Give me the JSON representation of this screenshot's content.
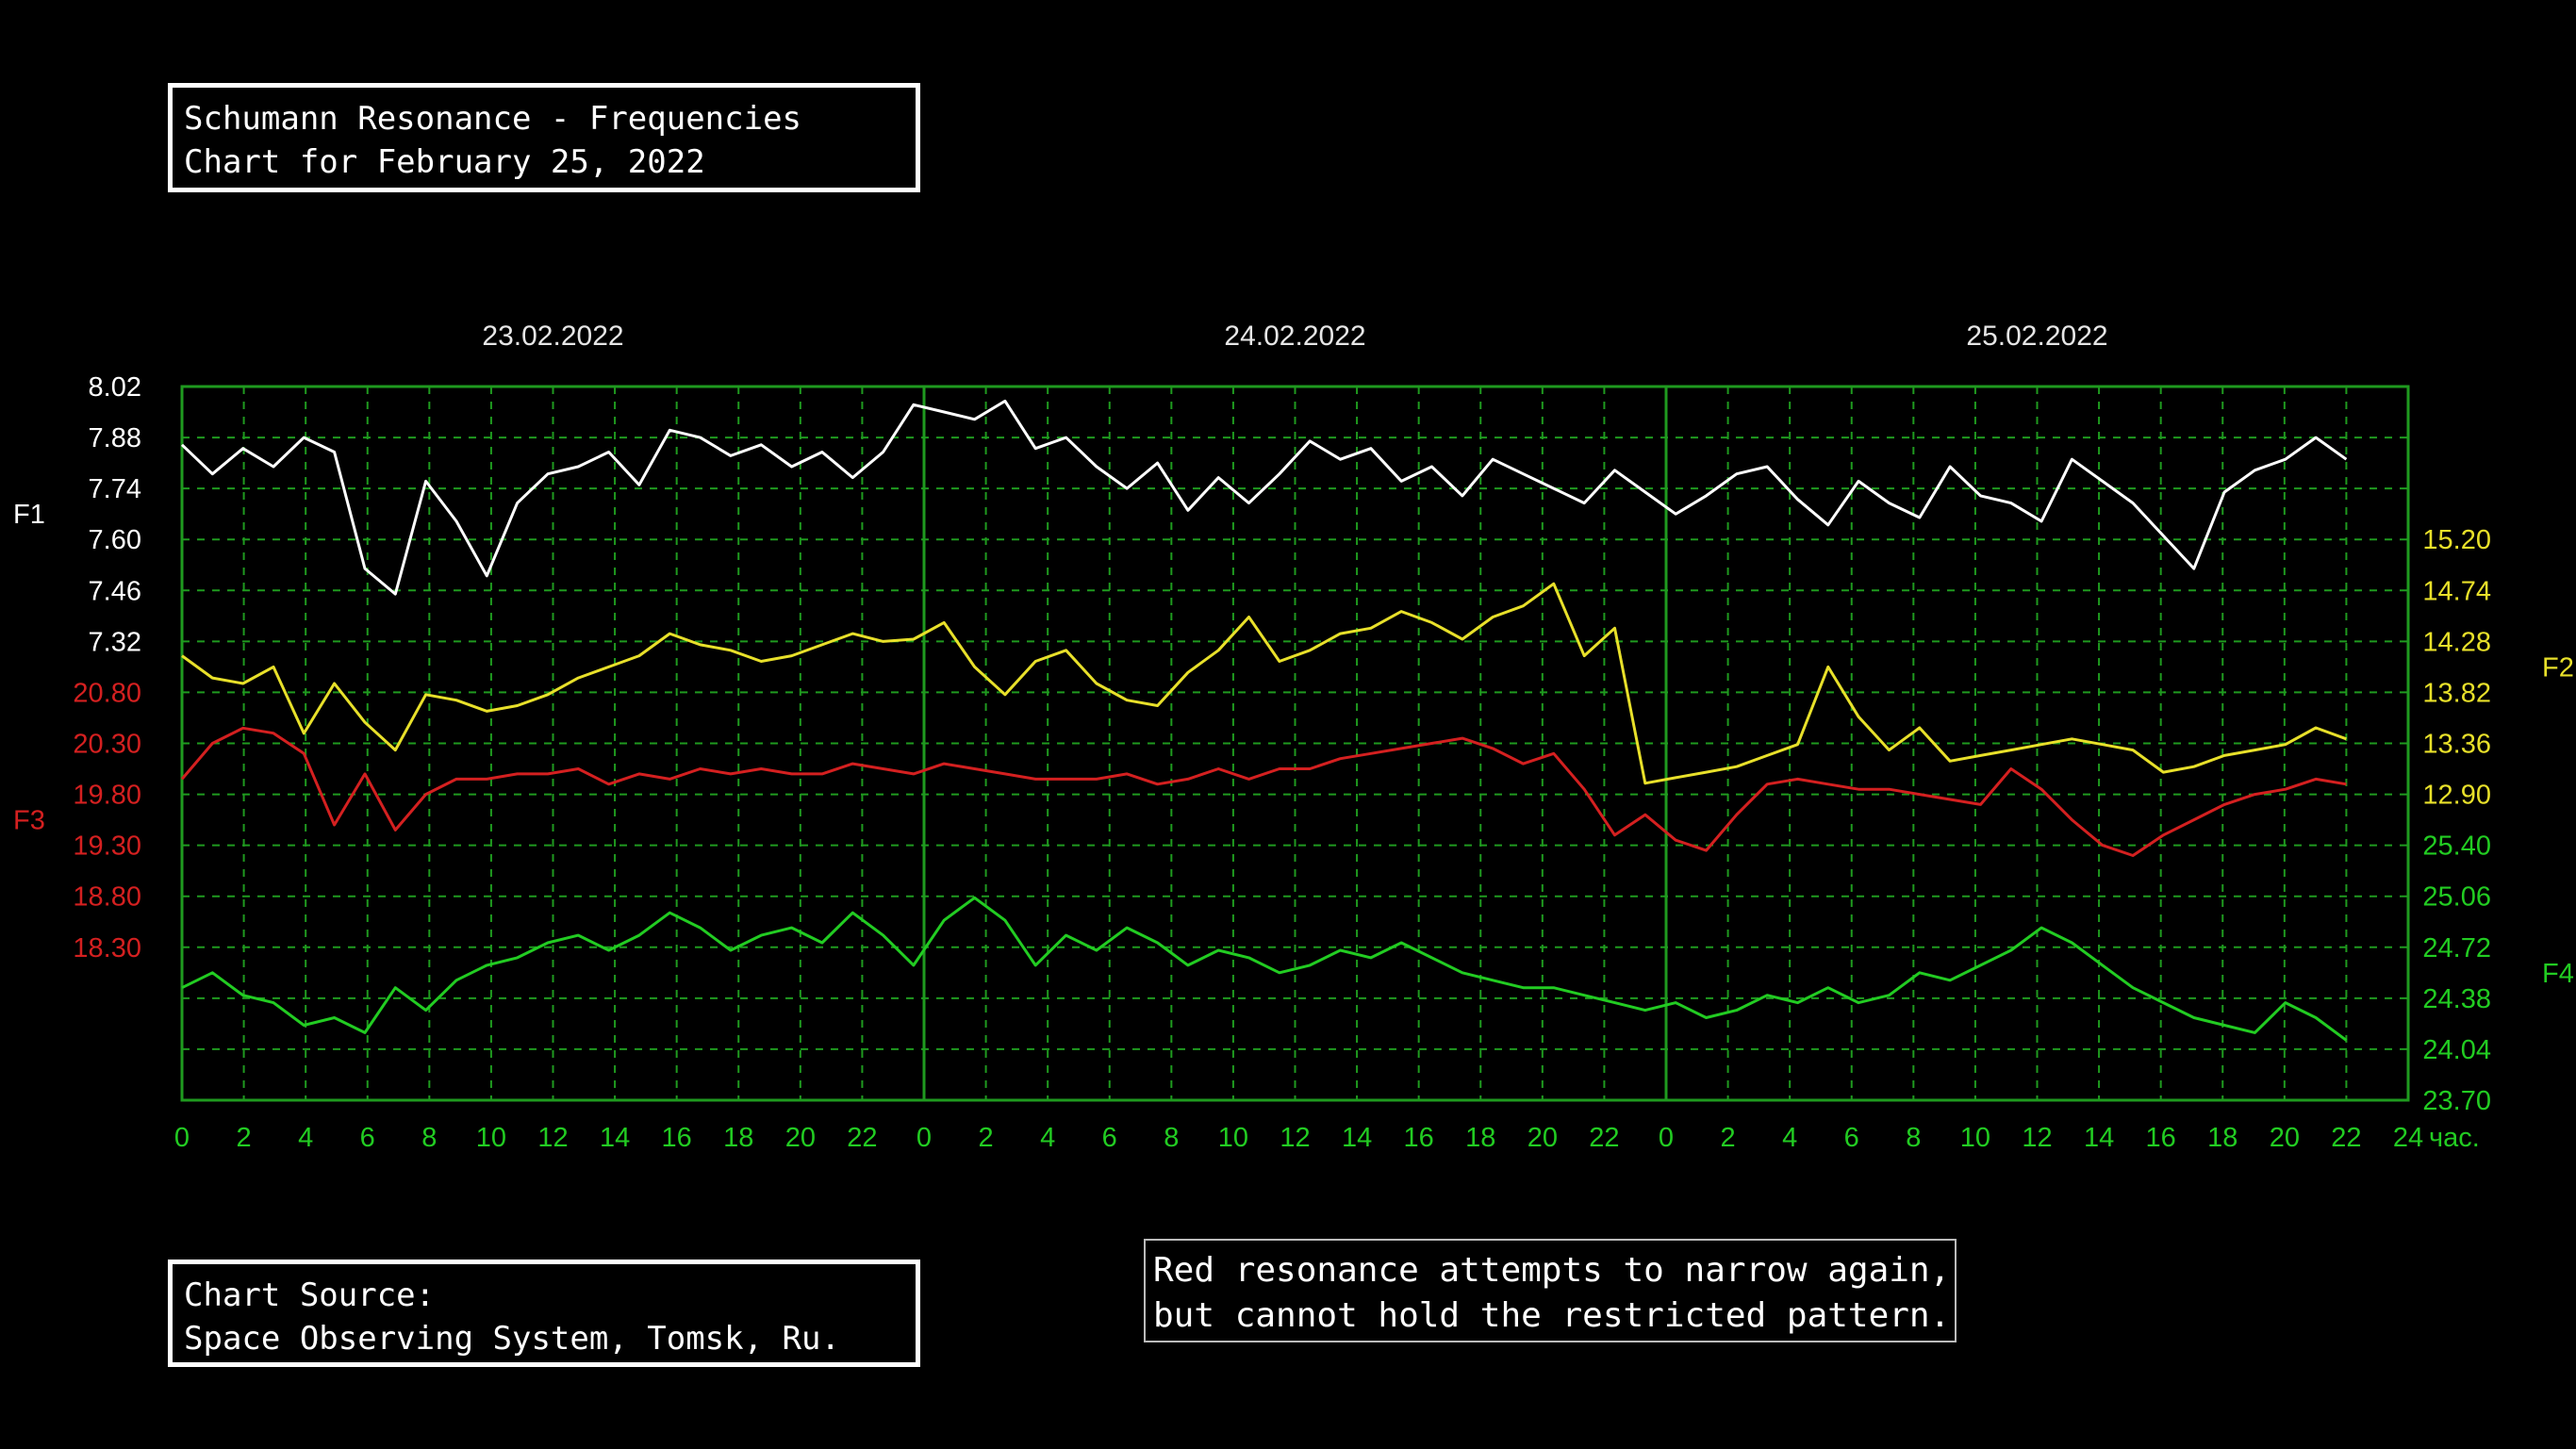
{
  "title_box": {
    "line1": "Schumann Resonance - Frequencies",
    "line2": "Chart for February 25, 2022"
  },
  "source_box": {
    "line1": "Chart Source:",
    "line2": "Space Observing System, Tomsk, Ru."
  },
  "comment_box": {
    "line1": "Red resonance attempts to narrow again,",
    "line2": "but cannot hold the restricted pattern."
  },
  "chart_data": {
    "type": "line",
    "date_labels": [
      "23.02.2022",
      "24.02.2022",
      "25.02.2022"
    ],
    "x_ticks": [
      "0",
      "2",
      "4",
      "6",
      "8",
      "10",
      "12",
      "14",
      "16",
      "18",
      "20",
      "22",
      "0",
      "2",
      "4",
      "6",
      "8",
      "10",
      "12",
      "14",
      "16",
      "18",
      "20",
      "22",
      "0",
      "2",
      "4",
      "6",
      "8",
      "10",
      "12",
      "14",
      "16",
      "18",
      "20",
      "22",
      "24"
    ],
    "x_unit": "час.",
    "grid": true,
    "colors": {
      "F1": "#ffffff",
      "F2": "#e8e02a",
      "F3": "#d42020",
      "F4": "#22cc22",
      "grid": "#1f9a1f",
      "axis_text_green": "#22cc22"
    },
    "axes": {
      "F1": {
        "label": "F1",
        "side": "left",
        "ticks": [
          "8.02",
          "7.88",
          "7.74",
          "7.60",
          "7.46",
          "7.32"
        ],
        "range": [
          7.32,
          8.02
        ]
      },
      "F3": {
        "label": "F3",
        "side": "left",
        "ticks": [
          "20.80",
          "20.30",
          "19.80",
          "19.30",
          "18.80",
          "18.30"
        ],
        "range": [
          18.3,
          20.8
        ]
      },
      "F2": {
        "label": "F2",
        "side": "right",
        "ticks": [
          "15.20",
          "14.74",
          "14.28",
          "13.82",
          "13.36",
          "12.90"
        ],
        "range": [
          12.9,
          15.2
        ]
      },
      "F4": {
        "label": "F4",
        "side": "right",
        "ticks": [
          "25.40",
          "25.06",
          "24.72",
          "24.38",
          "24.04",
          "23.70"
        ],
        "range": [
          23.7,
          25.4
        ]
      }
    },
    "series": [
      {
        "name": "F1",
        "x": [
          0,
          1,
          2,
          3,
          4,
          5,
          6,
          7,
          8,
          9,
          10,
          11,
          12,
          13,
          14,
          15,
          16,
          17,
          18,
          19,
          20,
          21,
          22,
          23,
          24,
          25,
          26,
          27,
          28,
          29,
          30,
          31,
          32,
          33,
          34,
          35,
          36,
          37,
          38,
          39,
          40,
          41,
          42,
          43,
          44,
          45,
          46,
          47,
          48,
          49,
          50,
          51,
          52,
          53,
          54,
          55,
          56,
          57,
          58,
          59,
          60,
          61,
          62,
          63,
          64,
          65,
          66,
          67,
          68,
          69,
          70,
          71
        ],
        "y": [
          7.86,
          7.78,
          7.85,
          7.8,
          7.88,
          7.84,
          7.52,
          7.45,
          7.76,
          7.65,
          7.5,
          7.7,
          7.78,
          7.8,
          7.84,
          7.75,
          7.9,
          7.88,
          7.83,
          7.86,
          7.8,
          7.84,
          7.77,
          7.84,
          7.97,
          7.95,
          7.93,
          7.98,
          7.85,
          7.88,
          7.8,
          7.74,
          7.81,
          7.68,
          7.77,
          7.7,
          7.78,
          7.87,
          7.82,
          7.85,
          7.76,
          7.8,
          7.72,
          7.82,
          7.78,
          7.74,
          7.7,
          7.79,
          7.73,
          7.67,
          7.72,
          7.78,
          7.8,
          7.71,
          7.64,
          7.76,
          7.7,
          7.66,
          7.8,
          7.72,
          7.7,
          7.65,
          7.82,
          7.76,
          7.7,
          7.61,
          7.52,
          7.73,
          7.79,
          7.82,
          7.88,
          7.82
        ]
      },
      {
        "name": "F2",
        "x": [
          0,
          1,
          2,
          3,
          4,
          5,
          6,
          7,
          8,
          9,
          10,
          11,
          12,
          13,
          14,
          15,
          16,
          17,
          18,
          19,
          20,
          21,
          22,
          23,
          24,
          25,
          26,
          27,
          28,
          29,
          30,
          31,
          32,
          33,
          34,
          35,
          36,
          37,
          38,
          39,
          40,
          41,
          42,
          43,
          44,
          45,
          46,
          47,
          48,
          49,
          50,
          51,
          52,
          53,
          54,
          55,
          56,
          57,
          58,
          59,
          60,
          61,
          62,
          63,
          64,
          65,
          66,
          67,
          68,
          69,
          70,
          71
        ],
        "y": [
          14.15,
          13.95,
          13.9,
          14.05,
          13.45,
          13.9,
          13.55,
          13.3,
          13.8,
          13.75,
          13.65,
          13.7,
          13.8,
          13.95,
          14.05,
          14.15,
          14.35,
          14.25,
          14.2,
          14.1,
          14.15,
          14.25,
          14.35,
          14.28,
          14.3,
          14.45,
          14.05,
          13.8,
          14.1,
          14.2,
          13.9,
          13.75,
          13.7,
          14.0,
          14.2,
          14.5,
          14.1,
          14.2,
          14.35,
          14.4,
          14.55,
          14.45,
          14.3,
          14.5,
          14.6,
          14.8,
          14.15,
          14.4,
          13.0,
          13.05,
          13.1,
          13.15,
          13.25,
          13.35,
          14.05,
          13.6,
          13.3,
          13.5,
          13.2,
          13.25,
          13.3,
          13.35,
          13.4,
          13.35,
          13.3,
          13.1,
          13.15,
          13.25,
          13.3,
          13.35,
          13.5,
          13.4
        ]
      },
      {
        "name": "F3",
        "x": [
          0,
          1,
          2,
          3,
          4,
          5,
          6,
          7,
          8,
          9,
          10,
          11,
          12,
          13,
          14,
          15,
          16,
          17,
          18,
          19,
          20,
          21,
          22,
          23,
          24,
          25,
          26,
          27,
          28,
          29,
          30,
          31,
          32,
          33,
          34,
          35,
          36,
          37,
          38,
          39,
          40,
          41,
          42,
          43,
          44,
          45,
          46,
          47,
          48,
          49,
          50,
          51,
          52,
          53,
          54,
          55,
          56,
          57,
          58,
          59,
          60,
          61,
          62,
          63,
          64,
          65,
          66,
          67,
          68,
          69,
          70,
          71
        ],
        "y": [
          19.95,
          20.3,
          20.45,
          20.4,
          20.2,
          19.5,
          20.0,
          19.45,
          19.8,
          19.95,
          19.95,
          20.0,
          20.0,
          20.05,
          19.9,
          20.0,
          19.95,
          20.05,
          20.0,
          20.05,
          20.0,
          20.0,
          20.1,
          20.05,
          20.0,
          20.1,
          20.05,
          20.0,
          19.95,
          19.95,
          19.95,
          20.0,
          19.9,
          19.95,
          20.05,
          19.95,
          20.05,
          20.05,
          20.15,
          20.2,
          20.25,
          20.3,
          20.35,
          20.25,
          20.1,
          20.2,
          19.85,
          19.4,
          19.6,
          19.35,
          19.25,
          19.6,
          19.9,
          19.95,
          19.9,
          19.85,
          19.85,
          19.8,
          19.75,
          19.7,
          20.05,
          19.85,
          19.55,
          19.3,
          19.2,
          19.4,
          19.55,
          19.7,
          19.8,
          19.85,
          19.95,
          19.9
        ]
      },
      {
        "name": "F4",
        "x": [
          0,
          1,
          2,
          3,
          4,
          5,
          6,
          7,
          8,
          9,
          10,
          11,
          12,
          13,
          14,
          15,
          16,
          17,
          18,
          19,
          20,
          21,
          22,
          23,
          24,
          25,
          26,
          27,
          28,
          29,
          30,
          31,
          32,
          33,
          34,
          35,
          36,
          37,
          38,
          39,
          40,
          41,
          42,
          43,
          44,
          45,
          46,
          47,
          48,
          49,
          50,
          51,
          52,
          53,
          54,
          55,
          56,
          57,
          58,
          59,
          60,
          61,
          62,
          63,
          64,
          65,
          66,
          67,
          68,
          69,
          70,
          71
        ],
        "y": [
          24.45,
          24.55,
          24.4,
          24.35,
          24.2,
          24.25,
          24.15,
          24.45,
          24.3,
          24.5,
          24.6,
          24.65,
          24.75,
          24.8,
          24.7,
          24.8,
          24.95,
          24.85,
          24.7,
          24.8,
          24.85,
          24.75,
          24.95,
          24.8,
          24.6,
          24.9,
          25.05,
          24.9,
          24.6,
          24.8,
          24.7,
          24.85,
          24.75,
          24.6,
          24.7,
          24.65,
          24.55,
          24.6,
          24.7,
          24.65,
          24.75,
          24.65,
          24.55,
          24.5,
          24.45,
          24.45,
          24.4,
          24.35,
          24.3,
          24.35,
          24.25,
          24.3,
          24.4,
          24.35,
          24.45,
          24.35,
          24.4,
          24.55,
          24.5,
          24.6,
          24.7,
          24.85,
          24.75,
          24.6,
          24.45,
          24.35,
          24.25,
          24.2,
          24.15,
          24.35,
          24.25,
          24.1
        ]
      }
    ]
  }
}
